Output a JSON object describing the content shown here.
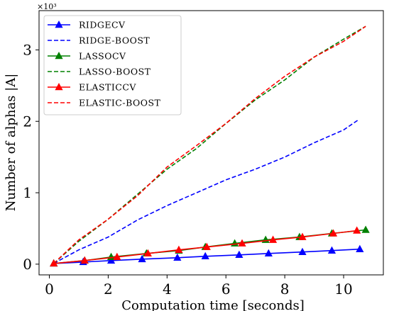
{
  "chart_data": {
    "type": "line",
    "xlabel": "Computation time [seconds]",
    "ylabel": "Number of alphas |A|",
    "y_multiplier": "×10³",
    "xlim": [
      -0.35,
      11.35
    ],
    "ylim": [
      -0.15,
      3.55
    ],
    "xticks": [
      0,
      2,
      4,
      6,
      8,
      10
    ],
    "yticks": [
      0,
      1,
      2,
      3
    ],
    "grid": false,
    "legend_position": "top-left",
    "series": [
      {
        "name": "RIDGECV",
        "color": "#0000ff",
        "style": "solid",
        "marker": "triangle",
        "x": [
          0.15,
          1.15,
          2.1,
          3.15,
          4.35,
          5.3,
          6.45,
          7.45,
          8.6,
          9.6,
          10.55
        ],
        "y": [
          0.01,
          0.03,
          0.05,
          0.07,
          0.09,
          0.11,
          0.13,
          0.15,
          0.17,
          0.19,
          0.21
        ]
      },
      {
        "name": "RIDGE-BOOST",
        "color": "#0000ff",
        "style": "dashed",
        "marker": "none",
        "x": [
          0.15,
          1.0,
          2.0,
          3.0,
          4.0,
          5.0,
          6.0,
          7.0,
          8.0,
          9.0,
          10.0,
          10.5
        ],
        "y": [
          0.01,
          0.2,
          0.38,
          0.62,
          0.82,
          1.0,
          1.18,
          1.33,
          1.5,
          1.7,
          1.88,
          2.02
        ]
      },
      {
        "name": "LASSOCV",
        "color": "#008000",
        "style": "solid",
        "marker": "triangle",
        "x": [
          0.15,
          1.2,
          2.1,
          3.3,
          4.4,
          5.3,
          6.3,
          7.35,
          8.5,
          9.6,
          10.75
        ],
        "y": [
          0.01,
          0.05,
          0.1,
          0.15,
          0.19,
          0.24,
          0.29,
          0.34,
          0.38,
          0.43,
          0.48
        ]
      },
      {
        "name": "LASSO-BOOST",
        "color": "#008000",
        "style": "dashed",
        "marker": "none",
        "x": [
          0.15,
          1.0,
          2.0,
          3.0,
          4.0,
          5.0,
          6.0,
          7.0,
          8.0,
          9.0,
          10.0,
          10.75
        ],
        "y": [
          0.01,
          0.32,
          0.63,
          0.98,
          1.33,
          1.62,
          1.97,
          2.3,
          2.58,
          2.9,
          3.15,
          3.33
        ]
      },
      {
        "name": "ELASTICCV",
        "color": "#ff0000",
        "style": "solid",
        "marker": "triangle",
        "x": [
          0.15,
          1.2,
          2.3,
          3.35,
          4.4,
          5.35,
          6.55,
          7.6,
          8.6,
          9.65,
          10.45
        ],
        "y": [
          0.01,
          0.05,
          0.1,
          0.15,
          0.2,
          0.24,
          0.29,
          0.34,
          0.38,
          0.43,
          0.47
        ]
      },
      {
        "name": "ELASTIC-BOOST",
        "color": "#ff0000",
        "style": "dashed",
        "marker": "none",
        "x": [
          0.15,
          1.0,
          2.0,
          3.0,
          4.0,
          5.0,
          6.0,
          7.0,
          8.0,
          9.0,
          10.0,
          10.75
        ],
        "y": [
          0.01,
          0.34,
          0.63,
          0.96,
          1.36,
          1.66,
          1.97,
          2.32,
          2.63,
          2.9,
          3.12,
          3.33
        ]
      }
    ]
  }
}
